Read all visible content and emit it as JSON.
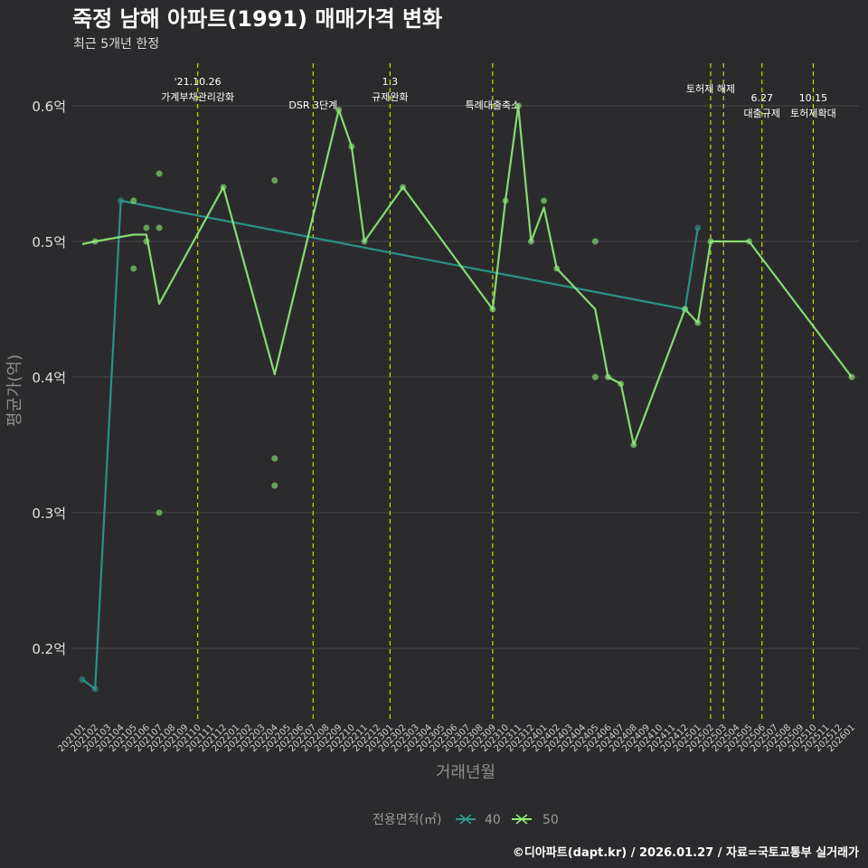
{
  "chart_data": {
    "type": "line",
    "title": "죽정 남해 아파트(1991) 매매가격 변화",
    "subtitle": "최근 5개년 한정",
    "xlabel": "거래년월",
    "ylabel": "평균가(억)",
    "ylim": [
      0.15,
      0.62
    ],
    "yticks": [
      {
        "value": 0.2,
        "label": "0.2억"
      },
      {
        "value": 0.3,
        "label": "0.3억"
      },
      {
        "value": 0.4,
        "label": "0.4억"
      },
      {
        "value": 0.5,
        "label": "0.5억"
      },
      {
        "value": 0.6,
        "label": "0.6억"
      }
    ],
    "categories": [
      "202101",
      "202102",
      "202103",
      "202104",
      "202105",
      "202106",
      "202107",
      "202108",
      "202109",
      "202110",
      "202111",
      "202112",
      "202201",
      "202202",
      "202203",
      "202204",
      "202205",
      "202206",
      "202207",
      "202208",
      "202209",
      "202210",
      "202211",
      "202212",
      "202301",
      "202302",
      "202303",
      "202304",
      "202305",
      "202306",
      "202307",
      "202308",
      "202309",
      "202310",
      "202311",
      "202312",
      "202401",
      "202402",
      "202403",
      "202404",
      "202405",
      "202406",
      "202407",
      "202408",
      "202409",
      "202410",
      "202411",
      "202412",
      "202501",
      "202502",
      "202503",
      "202504",
      "202505",
      "202506",
      "202507",
      "202508",
      "202509",
      "202510",
      "202511",
      "202512",
      "202601"
    ],
    "annotations": [
      {
        "x": "202110",
        "lines": [
          "'21.10.26",
          "가계부채관리강화"
        ],
        "level": "high"
      },
      {
        "x": "202207",
        "lines": [
          "DSR 3단계"
        ],
        "level": "low"
      },
      {
        "x": "202301",
        "lines": [
          "1.3",
          "규제완화"
        ],
        "level": "high"
      },
      {
        "x": "202309",
        "lines": [
          "특례대출축소"
        ],
        "level": "low"
      },
      {
        "x": "202502",
        "lines": [
          "토허제 해제"
        ],
        "level": "top"
      },
      {
        "x": "202503",
        "lines": [],
        "level": "none"
      },
      {
        "x": "202506",
        "lines": [
          "6.27",
          "대출규제"
        ],
        "level": "right"
      },
      {
        "x": "202510",
        "lines": [
          "10.15",
          "토허제확대"
        ],
        "level": "right"
      }
    ],
    "series": [
      {
        "name": "40",
        "color": "#2a9d8f",
        "points": [
          [
            "202101",
            0.177
          ],
          [
            "202102",
            0.17
          ],
          [
            "202104",
            0.53
          ],
          [
            "202412",
            0.45
          ],
          [
            "202501",
            0.51
          ]
        ]
      },
      {
        "name": "50",
        "color": "#90ee78",
        "points": [
          [
            "202101",
            0.498
          ],
          [
            "202102",
            0.5
          ],
          [
            "202105",
            0.505
          ],
          [
            "202106",
            0.505
          ],
          [
            "202107",
            0.454
          ],
          [
            "202112",
            0.54
          ],
          [
            "202204",
            0.402
          ],
          [
            "202209",
            0.597
          ],
          [
            "202210",
            0.57
          ],
          [
            "202211",
            0.5
          ],
          [
            "202302",
            0.54
          ],
          [
            "202309",
            0.45
          ],
          [
            "202310",
            0.53
          ],
          [
            "202311",
            0.6
          ],
          [
            "202312",
            0.5
          ],
          [
            "202401",
            0.525
          ],
          [
            "202402",
            0.48
          ],
          [
            "202405",
            0.45
          ],
          [
            "202406",
            0.4
          ],
          [
            "202407",
            0.395
          ],
          [
            "202408",
            0.35
          ],
          [
            "202412",
            0.45
          ],
          [
            "202501",
            0.44
          ],
          [
            "202502",
            0.5
          ],
          [
            "202505",
            0.5
          ],
          [
            "202601",
            0.4
          ]
        ]
      }
    ],
    "scatter": [
      {
        "series": "40",
        "x": "202101",
        "y": 0.177
      },
      {
        "series": "40",
        "x": "202102",
        "y": 0.17
      },
      {
        "series": "40",
        "x": "202104",
        "y": 0.53
      },
      {
        "series": "40",
        "x": "202412",
        "y": 0.45
      },
      {
        "series": "40",
        "x": "202501",
        "y": 0.51
      },
      {
        "series": "50",
        "x": "202102",
        "y": 0.5
      },
      {
        "series": "50",
        "x": "202105",
        "y": 0.53
      },
      {
        "series": "50",
        "x": "202105",
        "y": 0.48
      },
      {
        "series": "50",
        "x": "202106",
        "y": 0.51
      },
      {
        "series": "50",
        "x": "202106",
        "y": 0.5
      },
      {
        "series": "50",
        "x": "202107",
        "y": 0.55
      },
      {
        "series": "50",
        "x": "202107",
        "y": 0.51
      },
      {
        "series": "50",
        "x": "202107",
        "y": 0.3
      },
      {
        "series": "50",
        "x": "202112",
        "y": 0.54
      },
      {
        "series": "50",
        "x": "202204",
        "y": 0.545
      },
      {
        "series": "50",
        "x": "202204",
        "y": 0.34
      },
      {
        "series": "50",
        "x": "202204",
        "y": 0.32
      },
      {
        "series": "50",
        "x": "202209",
        "y": 0.597
      },
      {
        "series": "50",
        "x": "202210",
        "y": 0.57
      },
      {
        "series": "50",
        "x": "202211",
        "y": 0.5
      },
      {
        "series": "50",
        "x": "202302",
        "y": 0.54
      },
      {
        "series": "50",
        "x": "202309",
        "y": 0.45
      },
      {
        "series": "50",
        "x": "202310",
        "y": 0.53
      },
      {
        "series": "50",
        "x": "202311",
        "y": 0.6
      },
      {
        "series": "50",
        "x": "202312",
        "y": 0.5
      },
      {
        "series": "50",
        "x": "202401",
        "y": 0.53
      },
      {
        "series": "50",
        "x": "202402",
        "y": 0.48
      },
      {
        "series": "50",
        "x": "202405",
        "y": 0.5
      },
      {
        "series": "50",
        "x": "202405",
        "y": 0.4
      },
      {
        "series": "50",
        "x": "202406",
        "y": 0.4
      },
      {
        "series": "50",
        "x": "202407",
        "y": 0.395
      },
      {
        "series": "50",
        "x": "202408",
        "y": 0.35
      },
      {
        "series": "50",
        "x": "202412",
        "y": 0.45
      },
      {
        "series": "50",
        "x": "202501",
        "y": 0.44
      },
      {
        "series": "50",
        "x": "202502",
        "y": 0.5
      },
      {
        "series": "50",
        "x": "202505",
        "y": 0.5
      },
      {
        "series": "50",
        "x": "202601",
        "y": 0.4
      }
    ],
    "legend": {
      "title": "전용면적(㎡)",
      "placement": "bottom",
      "entries": [
        "40",
        "50"
      ]
    }
  },
  "caption": "©디아파트(dapt.kr) / 2026.01.27 / 자료=국토교통부 실거래가",
  "colors": {
    "background": "#2b2b2d",
    "grid": "#4a4a4c",
    "vline": "#d4d400"
  }
}
